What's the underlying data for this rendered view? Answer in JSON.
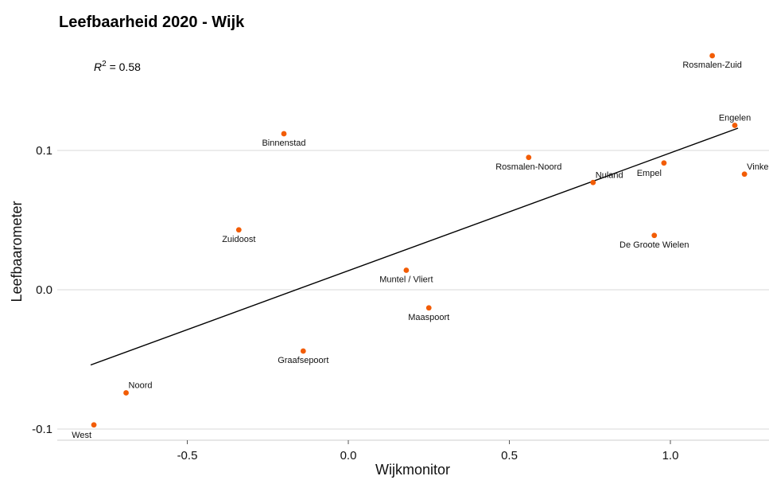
{
  "chart_data": {
    "type": "scatter",
    "title": "Leefbaarheid 2020 - Wijk",
    "xlabel": "Wijkmonitor",
    "ylabel": "Leefbaarometer",
    "annotation": {
      "label": "R",
      "superscript": "2",
      "text": " = 0.58"
    },
    "xlim": [
      -0.9,
      1.3
    ],
    "ylim": [
      -0.105,
      0.168
    ],
    "xticks": [
      {
        "value": -0.5,
        "label": "-0.5"
      },
      {
        "value": 0.0,
        "label": "0.0"
      },
      {
        "value": 0.5,
        "label": "0.5"
      },
      {
        "value": 1.0,
        "label": "1.0"
      }
    ],
    "yticks": [
      {
        "value": -0.1,
        "label": "-0.1"
      },
      {
        "value": 0.0,
        "label": "0.0"
      },
      {
        "value": 0.1,
        "label": "0.1"
      }
    ],
    "grid": true,
    "point_color": "#f25c05",
    "line_color": "#000000",
    "regression_line": {
      "x": [
        -0.8,
        1.21
      ],
      "y": [
        -0.054,
        0.116
      ]
    },
    "points": [
      {
        "label": "West",
        "x": -0.79,
        "y": -0.097,
        "label_pos": "below-left"
      },
      {
        "label": "Noord",
        "x": -0.69,
        "y": -0.074,
        "label_pos": "above-right"
      },
      {
        "label": "Graafsepoort",
        "x": -0.14,
        "y": -0.044,
        "label_pos": "below"
      },
      {
        "label": "Zuidoost",
        "x": -0.34,
        "y": 0.043,
        "label_pos": "below"
      },
      {
        "label": "Binnenstad",
        "x": -0.2,
        "y": 0.112,
        "label_pos": "below"
      },
      {
        "label": "Muntel / Vliert",
        "x": 0.18,
        "y": 0.014,
        "label_pos": "below"
      },
      {
        "label": "Maaspoort",
        "x": 0.25,
        "y": -0.013,
        "label_pos": "below"
      },
      {
        "label": "Rosmalen-Noord",
        "x": 0.56,
        "y": 0.095,
        "label_pos": "below"
      },
      {
        "label": "Nuland",
        "x": 0.76,
        "y": 0.077,
        "label_pos": "above-right"
      },
      {
        "label": "Empel",
        "x": 0.98,
        "y": 0.091,
        "label_pos": "below-left"
      },
      {
        "label": "De Groote Wielen",
        "x": 0.95,
        "y": 0.039,
        "label_pos": "below"
      },
      {
        "label": "Rosmalen-Zuid",
        "x": 1.13,
        "y": 0.168,
        "label_pos": "below"
      },
      {
        "label": "Engelen",
        "x": 1.2,
        "y": 0.118,
        "label_pos": "above"
      },
      {
        "label": "Vinkel",
        "x": 1.23,
        "y": 0.083,
        "label_pos": "above-right"
      }
    ]
  }
}
